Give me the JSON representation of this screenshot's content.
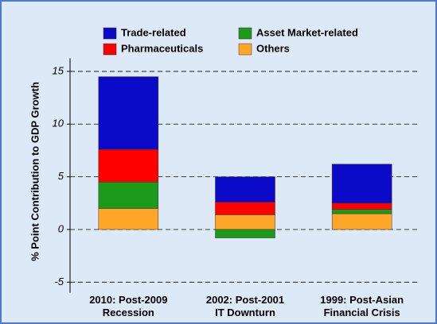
{
  "chart_data": {
    "type": "stacked_bar",
    "y_label": "% Point Contribution to GDP Growth",
    "categories": [
      "2010: Post-2009\nRecession",
      "2002: Post-2001\nIT Downturn",
      "1999: Post-Asian\nFinancial Crisis"
    ],
    "series": [
      {
        "name": "Others",
        "color": "#ffa528",
        "values": [
          2.0,
          1.4,
          1.5
        ]
      },
      {
        "name": "Asset Market-related",
        "color": "#1c9a1c",
        "values": [
          2.5,
          -0.8,
          0.4
        ]
      },
      {
        "name": "Pharmaceuticals",
        "color": "#ff0000",
        "values": [
          3.1,
          1.2,
          0.6
        ]
      },
      {
        "name": "Trade-related",
        "color": "#0a0ac8",
        "values": [
          6.9,
          2.4,
          3.7
        ]
      }
    ],
    "ylim": [
      -6,
      17
    ],
    "yticks": [
      -5,
      0,
      5,
      10,
      15
    ],
    "grid": true
  }
}
